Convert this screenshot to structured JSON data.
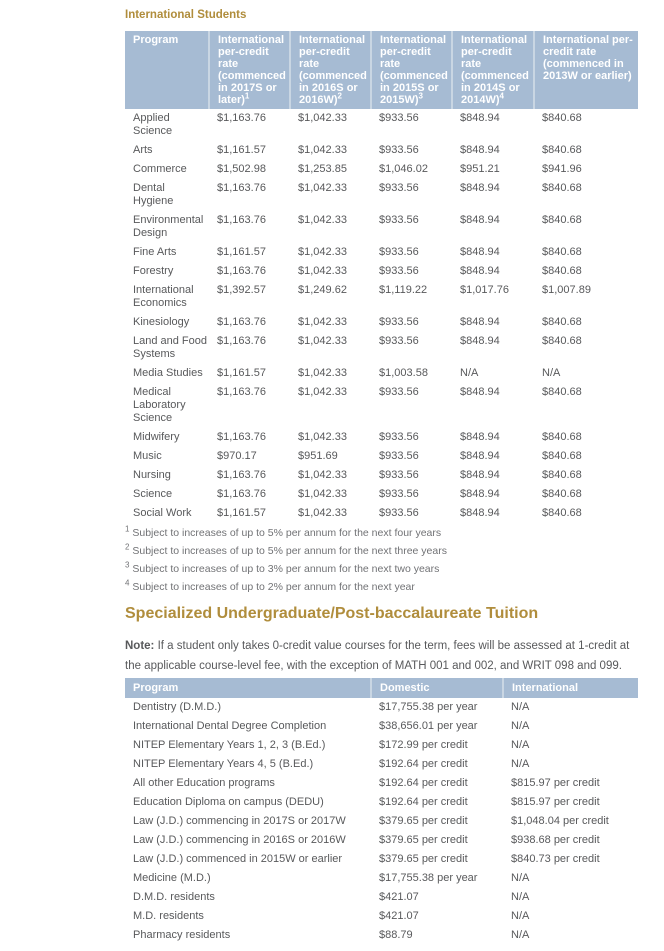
{
  "colors": {
    "heading_gold": "#b08d3c",
    "table_header_bg": "#a6bbd3",
    "table_header_divider": "#c9d6e3",
    "body_text": "#58595b",
    "footnote_text": "#717275"
  },
  "sections": {
    "international": {
      "heading": "International Students",
      "table": {
        "columns": [
          {
            "key": "program",
            "label": "Program",
            "sup": ""
          },
          {
            "key": "rate-2017s-or-later",
            "label": "International per-credit rate (commenced in 2017S or later)",
            "sup": "1"
          },
          {
            "key": "rate-2016s-or-2016w",
            "label": "International per-credit rate (commenced in 2016S or 2016W)",
            "sup": "2"
          },
          {
            "key": "rate-2015s-or-2015w",
            "label": "International per-credit rate (commenced in 2015S or 2015W)",
            "sup": "3"
          },
          {
            "key": "rate-2014s-or-2014w",
            "label": "International per-credit rate (commenced in 2014S or 2014W)",
            "sup": "4"
          },
          {
            "key": "rate-2013w-or-earlier",
            "label": "International per-credit rate (commenced in 2013W or earlier)",
            "sup": ""
          }
        ],
        "rows": [
          [
            "Applied Science",
            "$1,163.76",
            "$1,042.33",
            "$933.56",
            "$848.94",
            "$840.68"
          ],
          [
            "Arts",
            "$1,161.57",
            "$1,042.33",
            "$933.56",
            "$848.94",
            "$840.68"
          ],
          [
            "Commerce",
            "$1,502.98",
            "$1,253.85",
            "$1,046.02",
            "$951.21",
            "$941.96"
          ],
          [
            "Dental Hygiene",
            "$1,163.76",
            "$1,042.33",
            "$933.56",
            "$848.94",
            "$840.68"
          ],
          [
            "Environmental Design",
            "$1,163.76",
            "$1,042.33",
            "$933.56",
            "$848.94",
            "$840.68"
          ],
          [
            "Fine Arts",
            "$1,161.57",
            "$1,042.33",
            "$933.56",
            "$848.94",
            "$840.68"
          ],
          [
            "Forestry",
            "$1,163.76",
            "$1,042.33",
            "$933.56",
            "$848.94",
            "$840.68"
          ],
          [
            "International Economics",
            "$1,392.57",
            "$1,249.62",
            "$1,119.22",
            "$1,017.76",
            "$1,007.89"
          ],
          [
            "Kinesiology",
            "$1,163.76",
            "$1,042.33",
            "$933.56",
            "$848.94",
            "$840.68"
          ],
          [
            "Land and Food Systems",
            "$1,163.76",
            "$1,042.33",
            "$933.56",
            "$848.94",
            "$840.68"
          ],
          [
            "Media Studies",
            "$1,161.57",
            "$1,042.33",
            "$1,003.58",
            "N/A",
            "N/A"
          ],
          [
            "Medical Laboratory Science",
            "$1,163.76",
            "$1,042.33",
            "$933.56",
            "$848.94",
            "$840.68"
          ],
          [
            "Midwifery",
            "$1,163.76",
            "$1,042.33",
            "$933.56",
            "$848.94",
            "$840.68"
          ],
          [
            "Music",
            "$970.17",
            "$951.69",
            "$933.56",
            "$848.94",
            "$840.68"
          ],
          [
            "Nursing",
            "$1,163.76",
            "$1,042.33",
            "$933.56",
            "$848.94",
            "$840.68"
          ],
          [
            "Science",
            "$1,163.76",
            "$1,042.33",
            "$933.56",
            "$848.94",
            "$840.68"
          ],
          [
            "Social Work",
            "$1,161.57",
            "$1,042.33",
            "$933.56",
            "$848.94",
            "$840.68"
          ]
        ]
      },
      "footnotes": [
        {
          "marker": "1",
          "text": "Subject to increases of up to 5% per annum for the next four years"
        },
        {
          "marker": "2",
          "text": "Subject to increases of up to 5% per annum for the next three years"
        },
        {
          "marker": "3",
          "text": "Subject to increases of up to 3% per annum for the next two years"
        },
        {
          "marker": "4",
          "text": "Subject to increases of up to 2% per annum for the next year"
        }
      ]
    },
    "specialized": {
      "heading": "Specialized Undergraduate/Post-baccalaureate Tuition",
      "note": {
        "label": "Note:",
        "text": "If a student only takes 0-credit value courses for the term, fees will be assessed at 1-credit at the applicable course-level fee, with the exception of MATH 001 and 002, and WRIT 098 and 099."
      },
      "table": {
        "columns": [
          {
            "key": "program",
            "label": "Program"
          },
          {
            "key": "domestic",
            "label": "Domestic"
          },
          {
            "key": "international",
            "label": "International"
          }
        ],
        "rows": [
          [
            "Dentistry (D.M.D.)",
            "$17,755.38 per year",
            "N/A"
          ],
          [
            "International Dental Degree Completion",
            "$38,656.01 per year",
            "N/A"
          ],
          [
            "NITEP Elementary Years 1, 2, 3 (B.Ed.)",
            "$172.99 per credit",
            "N/A"
          ],
          [
            "NITEP Elementary Years 4, 5 (B.Ed.)",
            "$192.64 per credit",
            "N/A"
          ],
          [
            "All other Education programs",
            "$192.64 per credit",
            "$815.97 per credit"
          ],
          [
            "Education Diploma on campus (DEDU)",
            "$192.64 per credit",
            "$815.97 per credit"
          ],
          [
            "Law (J.D.) commencing in 2017S or 2017W",
            "$379.65 per credit",
            "$1,048.04 per credit"
          ],
          [
            "Law (J.D.) commencing in 2016S or 2016W",
            "$379.65 per credit",
            "$938.68 per credit"
          ],
          [
            "Law (J.D.) commenced in 2015W or earlier",
            "$379.65 per credit",
            "$840.73 per credit"
          ],
          [
            "Medicine (M.D.)",
            "$17,755.38 per year",
            "N/A"
          ],
          [
            "D.M.D. residents",
            "$421.07",
            "N/A"
          ],
          [
            "M.D. residents",
            "$421.07",
            "N/A"
          ],
          [
            "Pharmacy residents",
            "$88.79",
            "N/A"
          ]
        ]
      }
    }
  }
}
